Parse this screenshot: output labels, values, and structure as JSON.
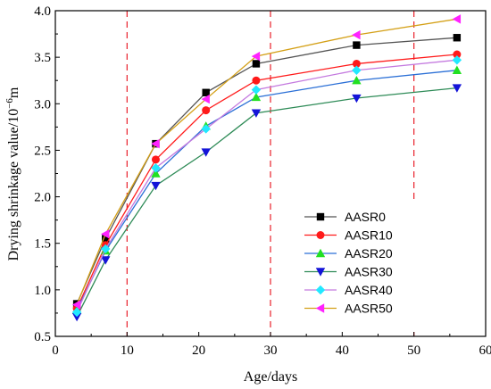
{
  "chart_data": {
    "type": "line",
    "xlabel": "Age/days",
    "ylabel": "Drying shrinkage value/10",
    "ylabel_exp": "−6",
    "ylabel_unit": "m",
    "xlim": [
      0,
      60
    ],
    "ylim": [
      0.5,
      4.0
    ],
    "xticks": [
      0,
      10,
      20,
      30,
      40,
      50,
      60
    ],
    "yticks": [
      0.5,
      1.0,
      1.5,
      2.0,
      2.5,
      3.0,
      3.5,
      4.0
    ],
    "x": [
      3,
      7,
      14,
      21,
      28,
      42,
      56
    ],
    "reference_lines_x": [
      10,
      30,
      50
    ],
    "reference_line_color": "#e8202a",
    "legend_position": "lower-right",
    "series": [
      {
        "name": "AASR0",
        "color": "#000000",
        "line_color": "#555555",
        "marker": "square",
        "values": [
          0.85,
          1.55,
          2.57,
          3.12,
          3.43,
          3.63,
          3.71
        ]
      },
      {
        "name": "AASR10",
        "color": "#ff1a1a",
        "line_color": "#ff1a1a",
        "marker": "circle",
        "values": [
          0.8,
          1.48,
          2.4,
          2.93,
          3.25,
          3.43,
          3.53
        ]
      },
      {
        "name": "AASR20",
        "color": "#22e022",
        "line_color": "#2a6fd6",
        "marker": "triangle-up",
        "values": [
          0.78,
          1.42,
          2.25,
          2.76,
          3.07,
          3.25,
          3.36
        ]
      },
      {
        "name": "AASR30",
        "color": "#1414d8",
        "line_color": "#2e8b57",
        "marker": "triangle-down",
        "values": [
          0.71,
          1.32,
          2.12,
          2.48,
          2.9,
          3.06,
          3.17
        ]
      },
      {
        "name": "AASR40",
        "color": "#22e8ff",
        "line_color": "#c47adf",
        "marker": "diamond",
        "values": [
          0.76,
          1.44,
          2.31,
          2.73,
          3.15,
          3.36,
          3.47
        ]
      },
      {
        "name": "AASR50",
        "color": "#ff22ff",
        "line_color": "#d4a017",
        "marker": "triangle-left",
        "values": [
          0.84,
          1.6,
          2.57,
          3.05,
          3.51,
          3.74,
          3.91
        ]
      }
    ]
  }
}
